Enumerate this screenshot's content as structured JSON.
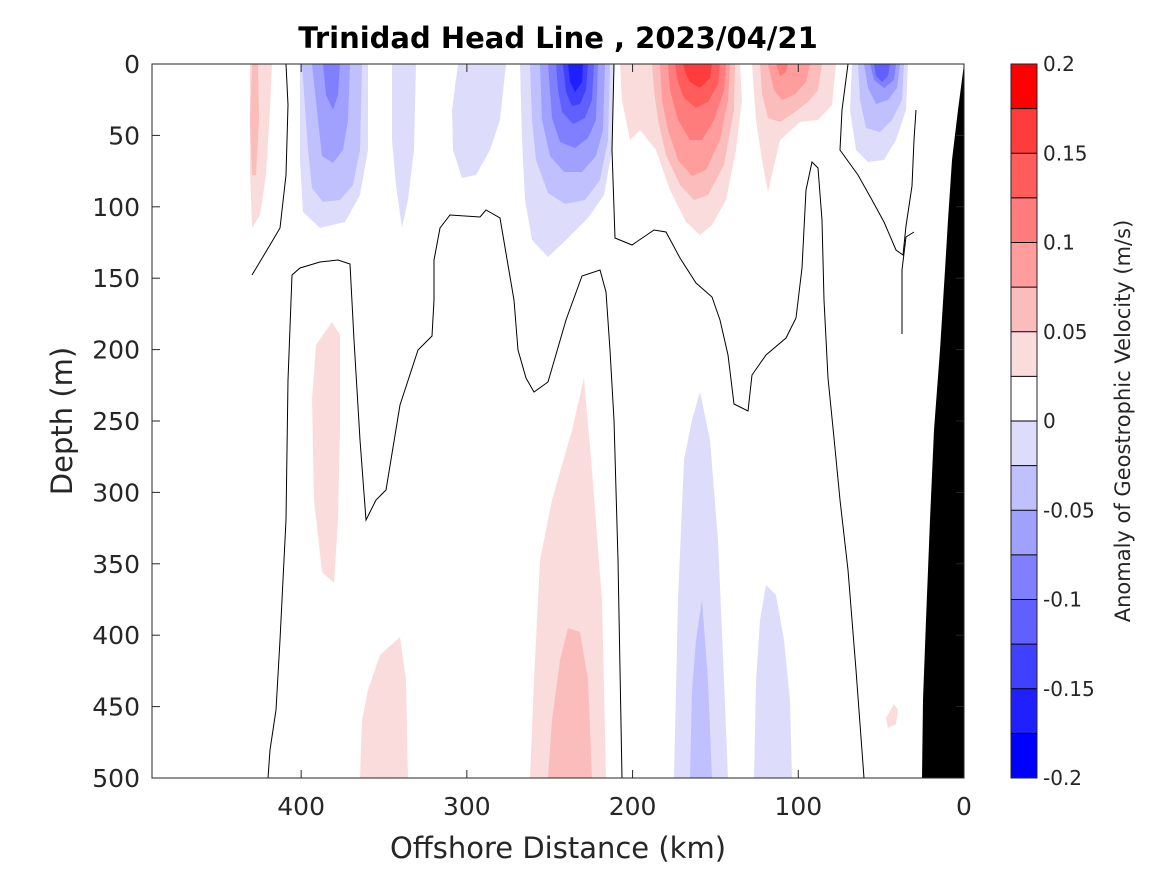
{
  "chart_data": {
    "type": "heatmap",
    "title": "Trinidad Head Line , 2023/04/21",
    "xlabel": "Offshore Distance (km)",
    "ylabel": "Depth (m)",
    "colorbar_label": "Anomaly of Geostrophic Velocity (m/s)",
    "xlim": [
      490,
      0
    ],
    "ylim": [
      500,
      0
    ],
    "x_reversed": true,
    "y_reversed": true,
    "xticks": [
      400,
      300,
      200,
      100,
      0
    ],
    "yticks": [
      0,
      50,
      100,
      150,
      200,
      250,
      300,
      350,
      400,
      450,
      500
    ],
    "colorbar": {
      "range": [
        -0.2,
        0.2
      ],
      "levels": [
        -0.2,
        -0.175,
        -0.15,
        -0.125,
        -0.1,
        -0.075,
        -0.05,
        -0.025,
        0,
        0.025,
        0.05,
        0.075,
        0.1,
        0.125,
        0.15,
        0.175,
        0.2
      ],
      "colors": [
        "#0000ff",
        "#2020ff",
        "#4040ff",
        "#6060ff",
        "#8080ff",
        "#a0a0ff",
        "#c0c0ff",
        "#ddddfb",
        "#ffffff",
        "#fbdcdc",
        "#fbbcbc",
        "#ff9c9c",
        "#ff7c7c",
        "#ff5c5c",
        "#ff3c3c",
        "#ff0000"
      ],
      "ticks": [
        0.2,
        0.15,
        0.1,
        0.05,
        0,
        -0.05,
        -0.1,
        -0.15,
        -0.2
      ]
    },
    "contour_level": 0,
    "bathymetry_color": "#000000",
    "anomaly_features": [
      {
        "sign": "positive",
        "center_km": 425,
        "depth_range": [
          0,
          115
        ],
        "peak": 0.05
      },
      {
        "sign": "negative",
        "center_km": 375,
        "depth_range": [
          0,
          115
        ],
        "peak": -0.1
      },
      {
        "sign": "negative",
        "center_km": 340,
        "depth_range": [
          0,
          115
        ],
        "peak": -0.05
      },
      {
        "sign": "negative",
        "center_km": 290,
        "depth_range": [
          0,
          80
        ],
        "peak": -0.05
      },
      {
        "sign": "negative",
        "center_km": 232,
        "depth_range": [
          0,
          135
        ],
        "peak": -0.175
      },
      {
        "sign": "positive",
        "center_km": 160,
        "depth_range": [
          0,
          120
        ],
        "peak": 0.15
      },
      {
        "sign": "positive",
        "center_km": 105,
        "depth_range": [
          0,
          90
        ],
        "peak": 0.1
      },
      {
        "sign": "negative",
        "center_km": 55,
        "depth_range": [
          0,
          70
        ],
        "peak": -0.125
      },
      {
        "sign": "positive",
        "center_km": 385,
        "depth_range": [
          180,
          365
        ],
        "peak": 0.05
      },
      {
        "sign": "positive",
        "center_km": 355,
        "depth_range": [
          400,
          500
        ],
        "peak": 0.05
      },
      {
        "sign": "positive",
        "center_km": 240,
        "depth_range": [
          220,
          500
        ],
        "peak": 0.075
      },
      {
        "sign": "negative",
        "center_km": 160,
        "depth_range": [
          230,
          500
        ],
        "peak": -0.075
      },
      {
        "sign": "negative",
        "center_km": 110,
        "depth_range": [
          365,
          500
        ],
        "peak": -0.05
      },
      {
        "sign": "positive",
        "center_km": 45,
        "depth_range": [
          445,
          465
        ],
        "peak": 0.05
      }
    ]
  }
}
